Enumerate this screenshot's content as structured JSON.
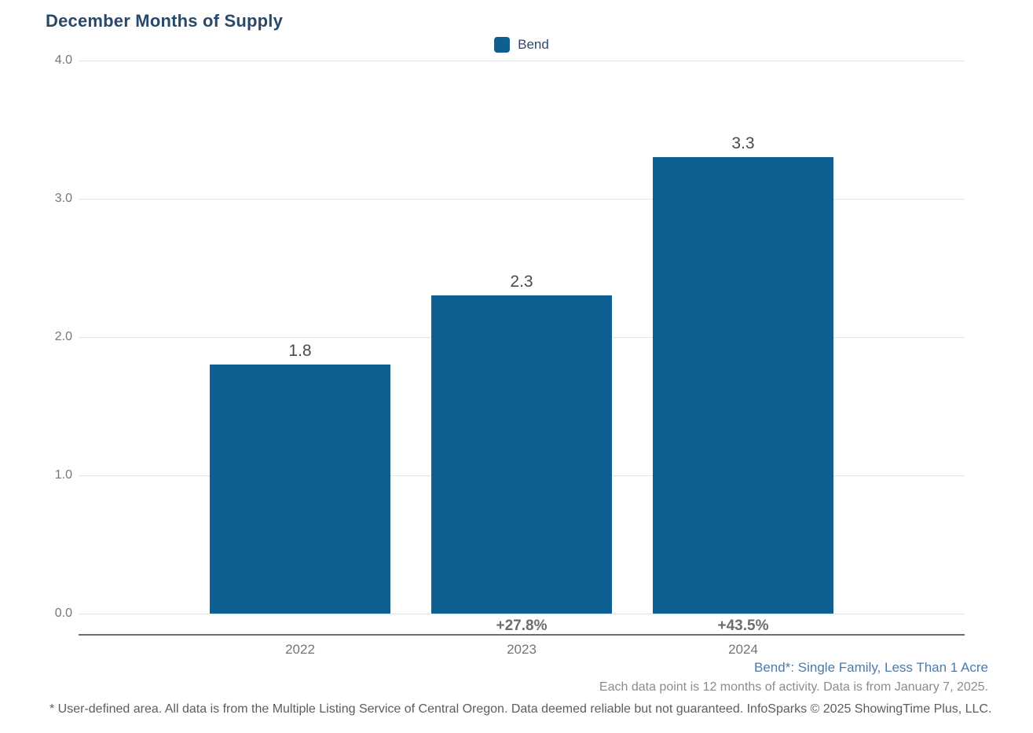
{
  "title": "December Months of Supply",
  "legend": {
    "label": "Bend",
    "marker_color": "#0f6092"
  },
  "chart_data": {
    "type": "bar",
    "title": "December Months of Supply",
    "series_name": "Bend",
    "categories": [
      "2022",
      "2023",
      "2024"
    ],
    "values": [
      1.8,
      2.3,
      3.3
    ],
    "bar_labels": [
      "1.8",
      "2.3",
      "3.3"
    ],
    "pct_change_labels": [
      "",
      "+27.8%",
      "+43.5%"
    ],
    "xlabel": "",
    "ylabel": "",
    "ylim": [
      0,
      4
    ],
    "yticks": [
      "4.0",
      "3.0",
      "2.0",
      "1.0",
      "0.0"
    ],
    "grid": true,
    "legend_position": "top-center",
    "bar_color": "#0f6092"
  },
  "annotations": {
    "series_note": "Bend*: Single Family, Less Than 1 Acre",
    "data_note": "Each data point is 12 months of activity. Data is from January 7, 2025.",
    "footnote": "* User-defined area. All data is from the Multiple Listing Service of Central Oregon. Data deemed reliable but not guaranteed. InfoSparks © 2025 ShowingTime Plus, LLC."
  },
  "colors": {
    "bar": "#0f6092",
    "title": "#29496b",
    "gridline": "#e3e3e3",
    "axis_line": "#6f6f6f",
    "tick_text": "#757575",
    "value_text": "#4a4a4a",
    "pct_text": "#6d6d6d",
    "series_note_text": "#4d7aa9",
    "note_text": "#8c8c8c",
    "footnote_text": "#5d5d5d"
  }
}
